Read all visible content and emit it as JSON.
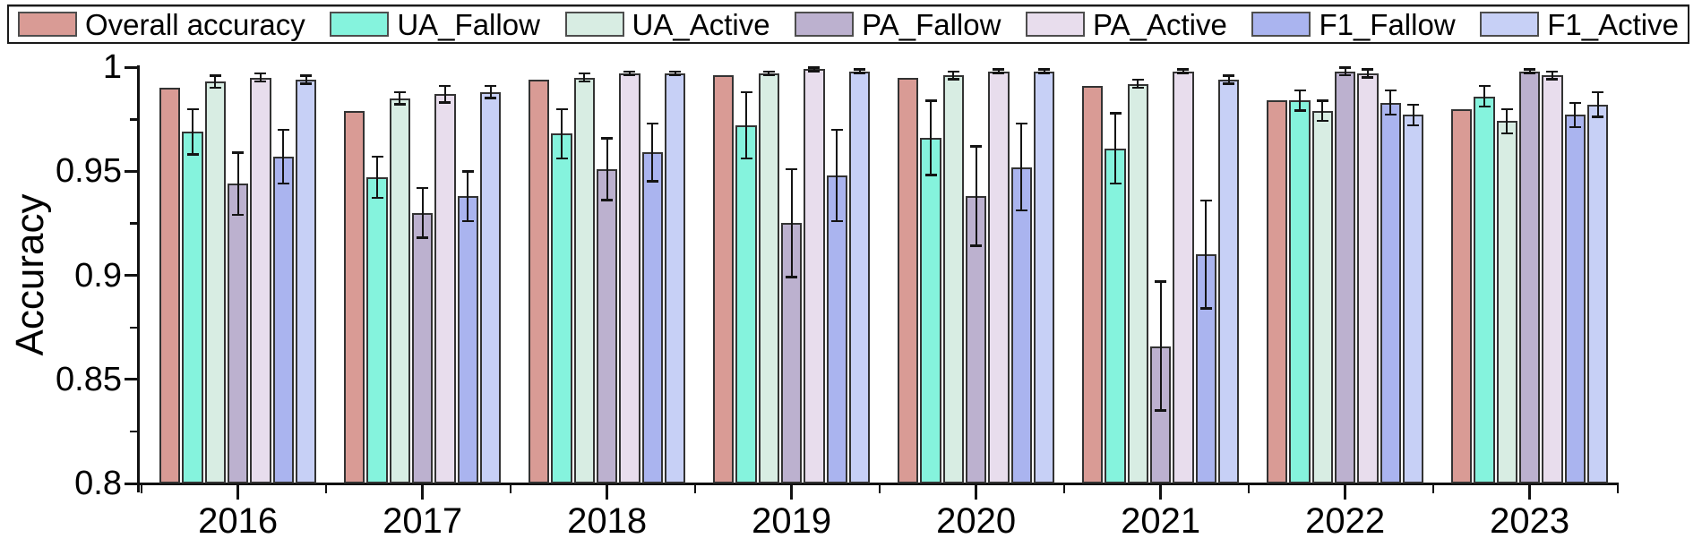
{
  "axes": {
    "y": {
      "label": "Accuracy",
      "major": [
        {
          "v": 1.0,
          "label": "1"
        },
        {
          "v": 0.95,
          "label": "0.95"
        },
        {
          "v": 0.9,
          "label": "0.9"
        },
        {
          "v": 0.85,
          "label": "0.85"
        },
        {
          "v": 0.8,
          "label": "0.8"
        }
      ],
      "minor": [
        0.975,
        0.925,
        0.875,
        0.825
      ]
    },
    "x": {
      "labels": [
        "2016",
        "2017",
        "2018",
        "2019",
        "2020",
        "2021",
        "2022",
        "2023"
      ]
    }
  },
  "chart_data": {
    "type": "bar",
    "title": "",
    "xlabel": "",
    "ylabel": "Accuracy",
    "ylim": [
      0.8,
      1.0
    ],
    "grid": false,
    "legend_position": "top",
    "error_bars": true,
    "categories": [
      "2016",
      "2017",
      "2018",
      "2019",
      "2020",
      "2021",
      "2022",
      "2023"
    ],
    "series": [
      {
        "name": "Overall accuracy",
        "color": "#D99B95",
        "values": [
          0.99,
          0.979,
          0.994,
          0.996,
          0.995,
          0.991,
          0.984,
          0.98
        ],
        "errors": [
          0,
          0,
          0,
          0,
          0,
          0,
          0,
          0
        ]
      },
      {
        "name": "UA_Fallow",
        "color": "#85F3DD",
        "values": [
          0.969,
          0.947,
          0.968,
          0.972,
          0.966,
          0.961,
          0.984,
          0.986
        ],
        "errors": [
          0.011,
          0.01,
          0.012,
          0.016,
          0.018,
          0.017,
          0.005,
          0.005
        ]
      },
      {
        "name": "UA_Active",
        "color": "#D8EDE3",
        "values": [
          0.993,
          0.985,
          0.995,
          0.997,
          0.996,
          0.992,
          0.979,
          0.974
        ],
        "errors": [
          0.003,
          0.003,
          0.002,
          0.001,
          0.002,
          0.002,
          0.005,
          0.006
        ]
      },
      {
        "name": "PA_Fallow",
        "color": "#BCB1CF",
        "values": [
          0.944,
          0.93,
          0.951,
          0.925,
          0.938,
          0.866,
          0.998,
          0.998
        ],
        "errors": [
          0.015,
          0.012,
          0.015,
          0.026,
          0.024,
          0.031,
          0.002,
          0.001
        ]
      },
      {
        "name": "PA_Active",
        "color": "#E8DDED",
        "values": [
          0.995,
          0.987,
          0.997,
          0.999,
          0.998,
          0.998,
          0.997,
          0.996
        ],
        "errors": [
          0.002,
          0.004,
          0.001,
          0.001,
          0.001,
          0.001,
          0.002,
          0.002
        ]
      },
      {
        "name": "F1_Fallow",
        "color": "#AAB4EF",
        "values": [
          0.957,
          0.938,
          0.959,
          0.948,
          0.952,
          0.91,
          0.983,
          0.977
        ],
        "errors": [
          0.013,
          0.012,
          0.014,
          0.022,
          0.021,
          0.026,
          0.006,
          0.006
        ]
      },
      {
        "name": "F1_Active",
        "color": "#C7D0F6",
        "values": [
          0.994,
          0.988,
          0.997,
          0.998,
          0.998,
          0.994,
          0.977,
          0.982
        ],
        "errors": [
          0.002,
          0.003,
          0.001,
          0.001,
          0.001,
          0.002,
          0.005,
          0.006
        ]
      }
    ]
  }
}
